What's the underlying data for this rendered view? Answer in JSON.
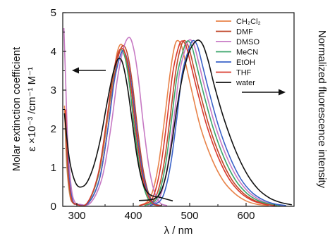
{
  "chart_data": {
    "type": "line",
    "xlabel": "λ / nm",
    "ylabel_line1": "Molar extinction coefficient",
    "ylabel_line2": "ε ×10⁻³ /cm⁻¹ M⁻¹",
    "y2label": "Normalized fluorescence intensity",
    "xlim": [
      275,
      685
    ],
    "ylim": [
      0,
      5
    ],
    "x_ticks": [
      300,
      400,
      500,
      600
    ],
    "y_ticks": [
      0,
      1,
      2,
      3,
      4,
      5
    ],
    "grid": false,
    "legend_position": "top-right",
    "arrows": [
      {
        "direction": "left",
        "points_to": "left axis"
      },
      {
        "direction": "right",
        "points_to": "right axis"
      }
    ],
    "series": [
      {
        "name": "CH₂Cl₂",
        "color": "#e8834a",
        "abs_peak": [
          379,
          4.18
        ],
        "em_peak": [
          478,
          4.28
        ],
        "absorption": [
          [
            278,
            2.6
          ],
          [
            282,
            1.1
          ],
          [
            288,
            0.25
          ],
          [
            295,
            0.08
          ],
          [
            305,
            0.05
          ],
          [
            320,
            0.1
          ],
          [
            340,
            0.9
          ],
          [
            355,
            2.3
          ],
          [
            365,
            3.4
          ],
          [
            372,
            4.0
          ],
          [
            379,
            4.18
          ],
          [
            386,
            3.9
          ],
          [
            393,
            3.2
          ],
          [
            402,
            2.0
          ],
          [
            412,
            0.95
          ],
          [
            422,
            0.35
          ],
          [
            432,
            0.08
          ],
          [
            445,
            0.02
          ]
        ],
        "emission": [
          [
            410,
            0.02
          ],
          [
            425,
            0.12
          ],
          [
            435,
            0.42
          ],
          [
            445,
            1.1
          ],
          [
            455,
            2.2
          ],
          [
            465,
            3.4
          ],
          [
            472,
            4.05
          ],
          [
            478,
            4.28
          ],
          [
            486,
            4.12
          ],
          [
            495,
            3.55
          ],
          [
            505,
            2.9
          ],
          [
            520,
            2.0
          ],
          [
            540,
            1.2
          ],
          [
            560,
            0.65
          ],
          [
            580,
            0.33
          ],
          [
            600,
            0.14
          ],
          [
            620,
            0.05
          ],
          [
            640,
            0.02
          ]
        ]
      },
      {
        "name": "DMF",
        "color": "#c0462a",
        "abs_peak": [
          383,
          4.15
        ],
        "em_peak": [
          490,
          4.28
        ],
        "absorption": [
          [
            280,
            2.0
          ],
          [
            285,
            0.8
          ],
          [
            292,
            0.15
          ],
          [
            300,
            0.05
          ],
          [
            320,
            0.08
          ],
          [
            340,
            0.7
          ],
          [
            355,
            2.0
          ],
          [
            366,
            3.3
          ],
          [
            375,
            3.95
          ],
          [
            383,
            4.15
          ],
          [
            391,
            3.85
          ],
          [
            399,
            3.1
          ],
          [
            408,
            1.95
          ],
          [
            418,
            0.9
          ],
          [
            428,
            0.3
          ],
          [
            438,
            0.07
          ],
          [
            450,
            0.02
          ]
        ],
        "emission": [
          [
            420,
            0.02
          ],
          [
            435,
            0.13
          ],
          [
            445,
            0.45
          ],
          [
            455,
            1.15
          ],
          [
            465,
            2.25
          ],
          [
            475,
            3.45
          ],
          [
            483,
            4.05
          ],
          [
            490,
            4.28
          ],
          [
            498,
            4.12
          ],
          [
            507,
            3.6
          ],
          [
            518,
            2.95
          ],
          [
            535,
            2.05
          ],
          [
            555,
            1.25
          ],
          [
            575,
            0.68
          ],
          [
            595,
            0.34
          ],
          [
            615,
            0.15
          ],
          [
            635,
            0.06
          ],
          [
            655,
            0.02
          ]
        ]
      },
      {
        "name": "DMSO",
        "color": "#c77ac4",
        "abs_peak": [
          393,
          4.36
        ],
        "em_peak": [
          500,
          4.3
        ],
        "absorption": [
          [
            277,
            4.6
          ],
          [
            280,
            3.3
          ],
          [
            284,
            1.6
          ],
          [
            290,
            0.5
          ],
          [
            296,
            0.12
          ],
          [
            305,
            0.05
          ],
          [
            325,
            0.1
          ],
          [
            345,
            0.75
          ],
          [
            360,
            2.0
          ],
          [
            372,
            3.3
          ],
          [
            383,
            4.1
          ],
          [
            393,
            4.36
          ],
          [
            401,
            4.05
          ],
          [
            409,
            3.3
          ],
          [
            418,
            2.1
          ],
          [
            428,
            1.0
          ],
          [
            438,
            0.35
          ],
          [
            448,
            0.08
          ],
          [
            460,
            0.02
          ]
        ],
        "emission": [
          [
            425,
            0.02
          ],
          [
            442,
            0.13
          ],
          [
            452,
            0.45
          ],
          [
            462,
            1.15
          ],
          [
            472,
            2.25
          ],
          [
            482,
            3.45
          ],
          [
            493,
            4.1
          ],
          [
            500,
            4.3
          ],
          [
            508,
            4.15
          ],
          [
            517,
            3.65
          ],
          [
            528,
            3.0
          ],
          [
            545,
            2.1
          ],
          [
            565,
            1.3
          ],
          [
            585,
            0.72
          ],
          [
            605,
            0.36
          ],
          [
            625,
            0.16
          ],
          [
            645,
            0.06
          ],
          [
            665,
            0.02
          ]
        ]
      },
      {
        "name": "MeCN",
        "color": "#3aa56a",
        "abs_peak": [
          378,
          4.05
        ],
        "em_peak": [
          496,
          4.27
        ],
        "absorption": [
          [
            280,
            2.3
          ],
          [
            284,
            0.9
          ],
          [
            290,
            0.2
          ],
          [
            298,
            0.06
          ],
          [
            318,
            0.08
          ],
          [
            338,
            0.8
          ],
          [
            353,
            2.2
          ],
          [
            363,
            3.25
          ],
          [
            371,
            3.85
          ],
          [
            378,
            4.05
          ],
          [
            386,
            3.8
          ],
          [
            394,
            3.05
          ],
          [
            403,
            1.9
          ],
          [
            413,
            0.85
          ],
          [
            423,
            0.3
          ],
          [
            433,
            0.07
          ],
          [
            445,
            0.02
          ]
        ],
        "emission": [
          [
            420,
            0.02
          ],
          [
            438,
            0.13
          ],
          [
            448,
            0.45
          ],
          [
            458,
            1.15
          ],
          [
            468,
            2.25
          ],
          [
            478,
            3.4
          ],
          [
            489,
            4.05
          ],
          [
            496,
            4.27
          ],
          [
            504,
            4.12
          ],
          [
            513,
            3.6
          ],
          [
            524,
            2.95
          ],
          [
            541,
            2.05
          ],
          [
            561,
            1.25
          ],
          [
            581,
            0.68
          ],
          [
            601,
            0.34
          ],
          [
            621,
            0.15
          ],
          [
            641,
            0.06
          ],
          [
            661,
            0.02
          ]
        ]
      },
      {
        "name": "EtOH",
        "color": "#3a62c8",
        "abs_peak": [
          382,
          4.02
        ],
        "em_peak": [
          506,
          4.28
        ],
        "absorption": [
          [
            281,
            2.1
          ],
          [
            286,
            0.8
          ],
          [
            292,
            0.18
          ],
          [
            300,
            0.05
          ],
          [
            320,
            0.08
          ],
          [
            340,
            0.7
          ],
          [
            355,
            2.0
          ],
          [
            366,
            3.2
          ],
          [
            375,
            3.8
          ],
          [
            382,
            4.02
          ],
          [
            390,
            3.75
          ],
          [
            398,
            3.0
          ],
          [
            407,
            1.85
          ],
          [
            417,
            0.85
          ],
          [
            427,
            0.3
          ],
          [
            437,
            0.07
          ],
          [
            448,
            0.02
          ]
        ],
        "emission": [
          [
            430,
            0.02
          ],
          [
            447,
            0.13
          ],
          [
            457,
            0.45
          ],
          [
            467,
            1.15
          ],
          [
            477,
            2.25
          ],
          [
            487,
            3.45
          ],
          [
            499,
            4.08
          ],
          [
            506,
            4.28
          ],
          [
            514,
            4.13
          ],
          [
            523,
            3.62
          ],
          [
            534,
            2.98
          ],
          [
            551,
            2.08
          ],
          [
            571,
            1.28
          ],
          [
            591,
            0.7
          ],
          [
            611,
            0.35
          ],
          [
            631,
            0.16
          ],
          [
            651,
            0.06
          ],
          [
            671,
            0.02
          ]
        ]
      },
      {
        "name": "THF",
        "color": "#d93a2e",
        "abs_peak": [
          380,
          4.08
        ],
        "em_peak": [
          486,
          4.27
        ],
        "absorption": [
          [
            280,
            2.5
          ],
          [
            284,
            1.0
          ],
          [
            290,
            0.22
          ],
          [
            298,
            0.06
          ],
          [
            318,
            0.08
          ],
          [
            338,
            0.85
          ],
          [
            353,
            2.25
          ],
          [
            363,
            3.3
          ],
          [
            372,
            3.9
          ],
          [
            380,
            4.08
          ],
          [
            388,
            3.82
          ],
          [
            396,
            3.08
          ],
          [
            405,
            1.92
          ],
          [
            415,
            0.88
          ],
          [
            425,
            0.32
          ],
          [
            435,
            0.07
          ],
          [
            447,
            0.02
          ]
        ],
        "emission": [
          [
            412,
            0.02
          ],
          [
            430,
            0.13
          ],
          [
            440,
            0.45
          ],
          [
            450,
            1.15
          ],
          [
            460,
            2.25
          ],
          [
            470,
            3.45
          ],
          [
            479,
            4.05
          ],
          [
            486,
            4.27
          ],
          [
            494,
            4.12
          ],
          [
            503,
            3.6
          ],
          [
            514,
            2.95
          ],
          [
            531,
            2.05
          ],
          [
            551,
            1.25
          ],
          [
            571,
            0.68
          ],
          [
            591,
            0.34
          ],
          [
            611,
            0.15
          ],
          [
            631,
            0.06
          ],
          [
            651,
            0.02
          ]
        ]
      },
      {
        "name": "water",
        "color": "#111111",
        "abs_peak": [
          376,
          3.82
        ],
        "em_peak": [
          516,
          4.29
        ],
        "absorption": [
          [
            278,
            2.4
          ],
          [
            282,
            1.8
          ],
          [
            287,
            1.2
          ],
          [
            293,
            0.8
          ],
          [
            300,
            0.55
          ],
          [
            308,
            0.5
          ],
          [
            318,
            0.62
          ],
          [
            330,
            1.05
          ],
          [
            342,
            1.75
          ],
          [
            352,
            2.55
          ],
          [
            362,
            3.3
          ],
          [
            370,
            3.72
          ],
          [
            376,
            3.82
          ],
          [
            382,
            3.65
          ],
          [
            390,
            3.05
          ],
          [
            398,
            2.2
          ],
          [
            406,
            1.35
          ],
          [
            414,
            0.75
          ],
          [
            422,
            0.42
          ],
          [
            432,
            0.28
          ],
          [
            445,
            0.24
          ],
          [
            455,
            0.2
          ],
          [
            470,
            0.14
          ]
        ],
        "emission": [
          [
            410,
            0.15
          ],
          [
            425,
            0.16
          ],
          [
            438,
            0.2
          ],
          [
            448,
            0.35
          ],
          [
            458,
            0.8
          ],
          [
            468,
            1.6
          ],
          [
            478,
            2.6
          ],
          [
            488,
            3.4
          ],
          [
            498,
            3.95
          ],
          [
            508,
            4.22
          ],
          [
            516,
            4.29
          ],
          [
            524,
            4.15
          ],
          [
            533,
            3.75
          ],
          [
            544,
            3.1
          ],
          [
            561,
            2.25
          ],
          [
            581,
            1.45
          ],
          [
            601,
            0.85
          ],
          [
            621,
            0.45
          ],
          [
            641,
            0.22
          ],
          [
            661,
            0.1
          ],
          [
            681,
            0.04
          ]
        ]
      }
    ]
  }
}
